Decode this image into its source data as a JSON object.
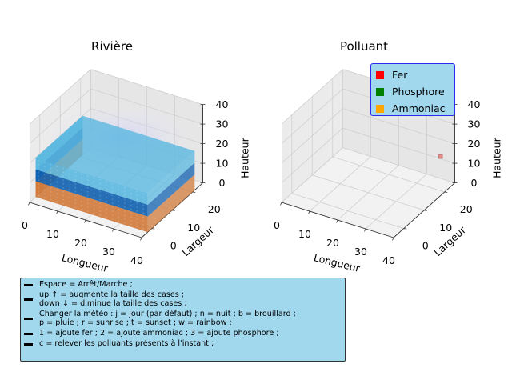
{
  "chart_data": [
    {
      "type": "3d-voxel",
      "title": "Rivière",
      "xlabel": "Longueur",
      "ylabel": "Largeur",
      "zlabel": "Hauteur",
      "x_ticks": [
        "0",
        "10",
        "20",
        "30",
        "40"
      ],
      "y_ticks": [
        "0",
        "10",
        "20"
      ],
      "z_ticks": [
        "0",
        "10",
        "20",
        "30",
        "40"
      ],
      "xlim": [
        0,
        40
      ],
      "ylim": [
        -5,
        25
      ],
      "zlim": [
        0,
        40
      ],
      "layers": [
        {
          "z_range": [
            0,
            8
          ],
          "color": "#d07a3a"
        },
        {
          "z_range": [
            8,
            14
          ],
          "color": "#1060b0"
        },
        {
          "z_range": [
            14,
            20
          ],
          "color": "#5ab8e0"
        }
      ]
    },
    {
      "type": "3d-scatter",
      "title": "Polluant",
      "xlabel": "Longueur",
      "ylabel": "Largeur",
      "zlabel": "Hauteur",
      "x_ticks": [
        "0",
        "10",
        "20",
        "30",
        "40"
      ],
      "y_ticks": [
        "0",
        "10",
        "20"
      ],
      "z_ticks": [
        "0",
        "10",
        "20",
        "30",
        "40"
      ],
      "xlim": [
        0,
        40
      ],
      "ylim": [
        -5,
        25
      ],
      "zlim": [
        0,
        40
      ],
      "legend": {
        "placement": "top-right",
        "entries": [
          {
            "label": "Fer",
            "color": "#ff0000"
          },
          {
            "label": "Phosphore",
            "color": "#008000"
          },
          {
            "label": "Ammoniac",
            "color": "#ffa500"
          }
        ]
      },
      "points": [
        {
          "x": 40,
          "y": 18,
          "z": 20,
          "color": "#e08a8a"
        }
      ]
    }
  ],
  "help": {
    "items": [
      "Espace = Arrêt/Marche ;",
      "up ↑ = augmente la taille des cases ;\ndown ↓ = diminue la taille des cases ;",
      "Changer la météo :  j = jour (par défaut) ; n = nuit ; b = brouillard ;\np = pluie ; r = sunrise ; t = sunset ; w = rainbow ;",
      "1 = ajoute fer ;  2 = ajoute ammoniac ;  3 = ajoute phosphore ;",
      "c = relever les polluants présents à l'instant ;"
    ]
  }
}
